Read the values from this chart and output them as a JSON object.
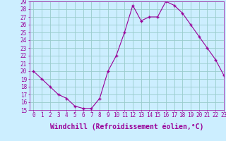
{
  "x": [
    0,
    1,
    2,
    3,
    4,
    5,
    6,
    7,
    8,
    9,
    10,
    11,
    12,
    13,
    14,
    15,
    16,
    17,
    18,
    19,
    20,
    21,
    22,
    23
  ],
  "y": [
    20,
    19,
    18,
    17,
    16.5,
    15.5,
    15.2,
    15.2,
    16.5,
    20,
    22,
    25,
    28.5,
    26.5,
    27,
    27,
    29,
    28.5,
    27.5,
    26,
    24.5,
    23,
    21.5,
    19.5
  ],
  "line_color": "#990099",
  "marker_color": "#990099",
  "bg_color": "#cceeff",
  "grid_color": "#99cccc",
  "xlabel": "Windchill (Refroidissement éolien,°C)",
  "ylim": [
    15,
    29
  ],
  "xlim": [
    -0.5,
    23
  ],
  "yticks": [
    15,
    16,
    17,
    18,
    19,
    20,
    21,
    22,
    23,
    24,
    25,
    26,
    27,
    28,
    29
  ],
  "xticks": [
    0,
    1,
    2,
    3,
    4,
    5,
    6,
    7,
    8,
    9,
    10,
    11,
    12,
    13,
    14,
    15,
    16,
    17,
    18,
    19,
    20,
    21,
    22,
    23
  ],
  "tick_label_fontsize": 5.5,
  "xlabel_fontsize": 7,
  "line_width": 0.8,
  "marker_size": 2.5
}
